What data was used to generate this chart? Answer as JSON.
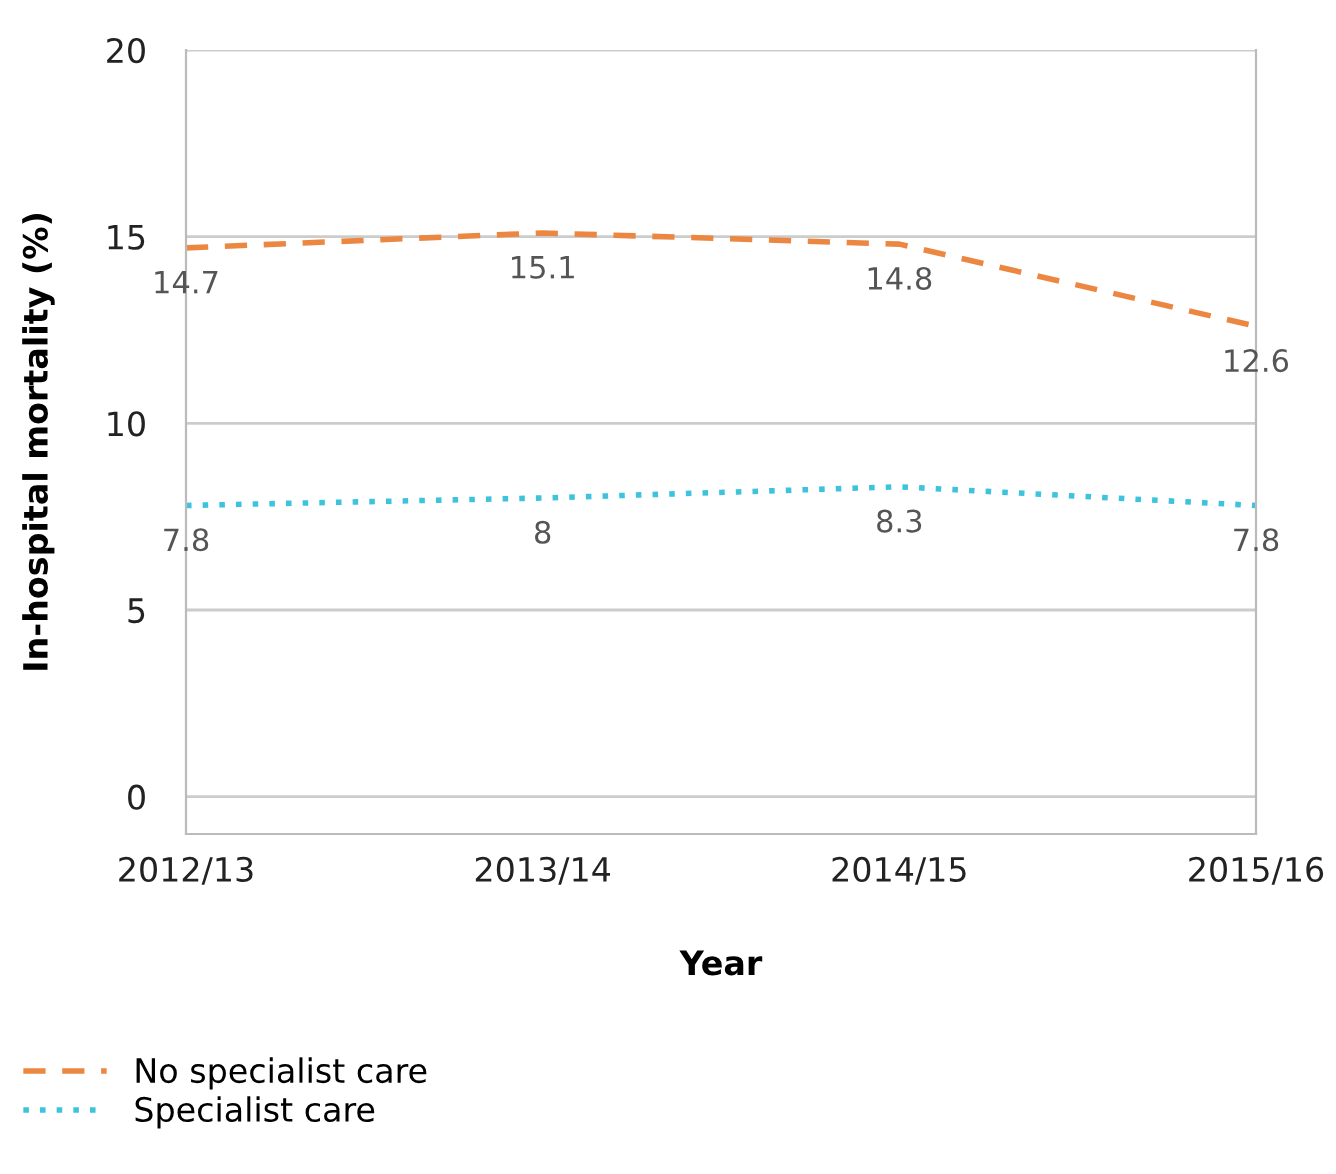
{
  "chart_data": {
    "type": "line",
    "xlabel": "Year",
    "ylabel": "In-hospital mortality (%)",
    "categories": [
      "2012/13",
      "2013/14",
      "2014/15",
      "2015/16"
    ],
    "series": [
      {
        "name": "No specialist care",
        "color": "#ec8742",
        "values": [
          14.7,
          15.1,
          14.8,
          12.6
        ],
        "line_style": "dashed"
      },
      {
        "name": "Specialist care",
        "color": "#3dc3dc",
        "values": [
          7.8,
          8,
          8.3,
          7.8
        ],
        "line_style": "dotted"
      }
    ],
    "ylim": [
      -1,
      20
    ],
    "yticks": [
      0,
      5,
      10,
      15,
      20
    ],
    "grid": "y",
    "legend": "bottom left",
    "data_labels": true,
    "marker": "none"
  }
}
